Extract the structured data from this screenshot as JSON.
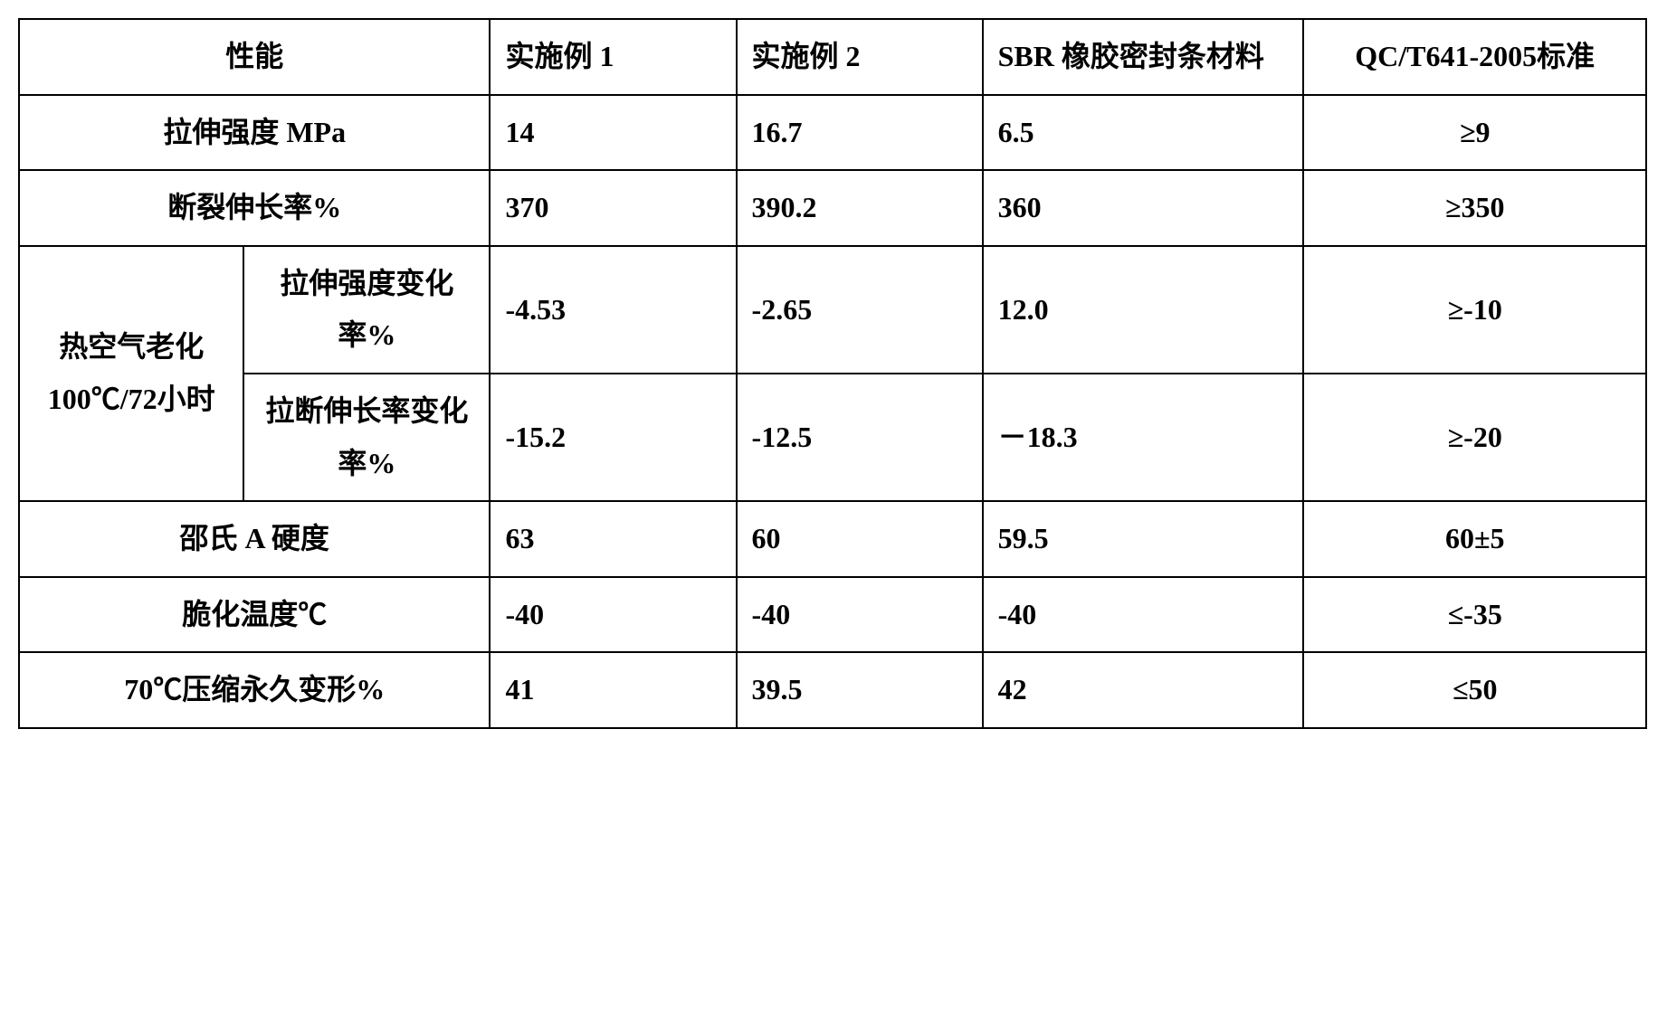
{
  "table": {
    "type": "table",
    "border_color": "#000000",
    "background_color": "#ffffff",
    "text_color": "#000000",
    "font_size_pt": 24,
    "font_weight": "bold",
    "columns": {
      "property": "性能",
      "example1": "实施例 1",
      "example2": "实施例 2",
      "sbr": "SBR 橡胶密封条材料",
      "standard": "QC/T641-2005标准"
    },
    "rows": {
      "tensile_strength": {
        "label": "拉伸强度 MPa",
        "ex1": "14",
        "ex2": "16.7",
        "sbr": "6.5",
        "std": "≥9"
      },
      "elongation": {
        "label": "断裂伸长率%",
        "ex1": "370",
        "ex2": "390.2",
        "sbr": "360",
        "std": "≥350"
      },
      "hot_air_aging": {
        "group_label": "热空气老化100℃/72小时",
        "tensile_change": {
          "label": "拉伸强度变化率%",
          "ex1": "-4.53",
          "ex2": "-2.65",
          "sbr": "12.0",
          "std": "≥-10"
        },
        "elongation_change": {
          "label": "拉断伸长率变化率%",
          "ex1": "-15.2",
          "ex2": "-12.5",
          "sbr": "－18.3",
          "std": "≥-20"
        }
      },
      "shore_hardness": {
        "label": "邵氏 A 硬度",
        "ex1": "63",
        "ex2": "60",
        "sbr": "59.5",
        "std": "60±5"
      },
      "brittle_temp": {
        "label": "脆化温度℃",
        "ex1": "-40",
        "ex2": "-40",
        "sbr": "-40",
        "std": "≤-35"
      },
      "compression_set": {
        "label": "70℃压缩永久变形%",
        "ex1": "41",
        "ex2": "39.5",
        "sbr": "42",
        "std": "≤50"
      }
    }
  }
}
